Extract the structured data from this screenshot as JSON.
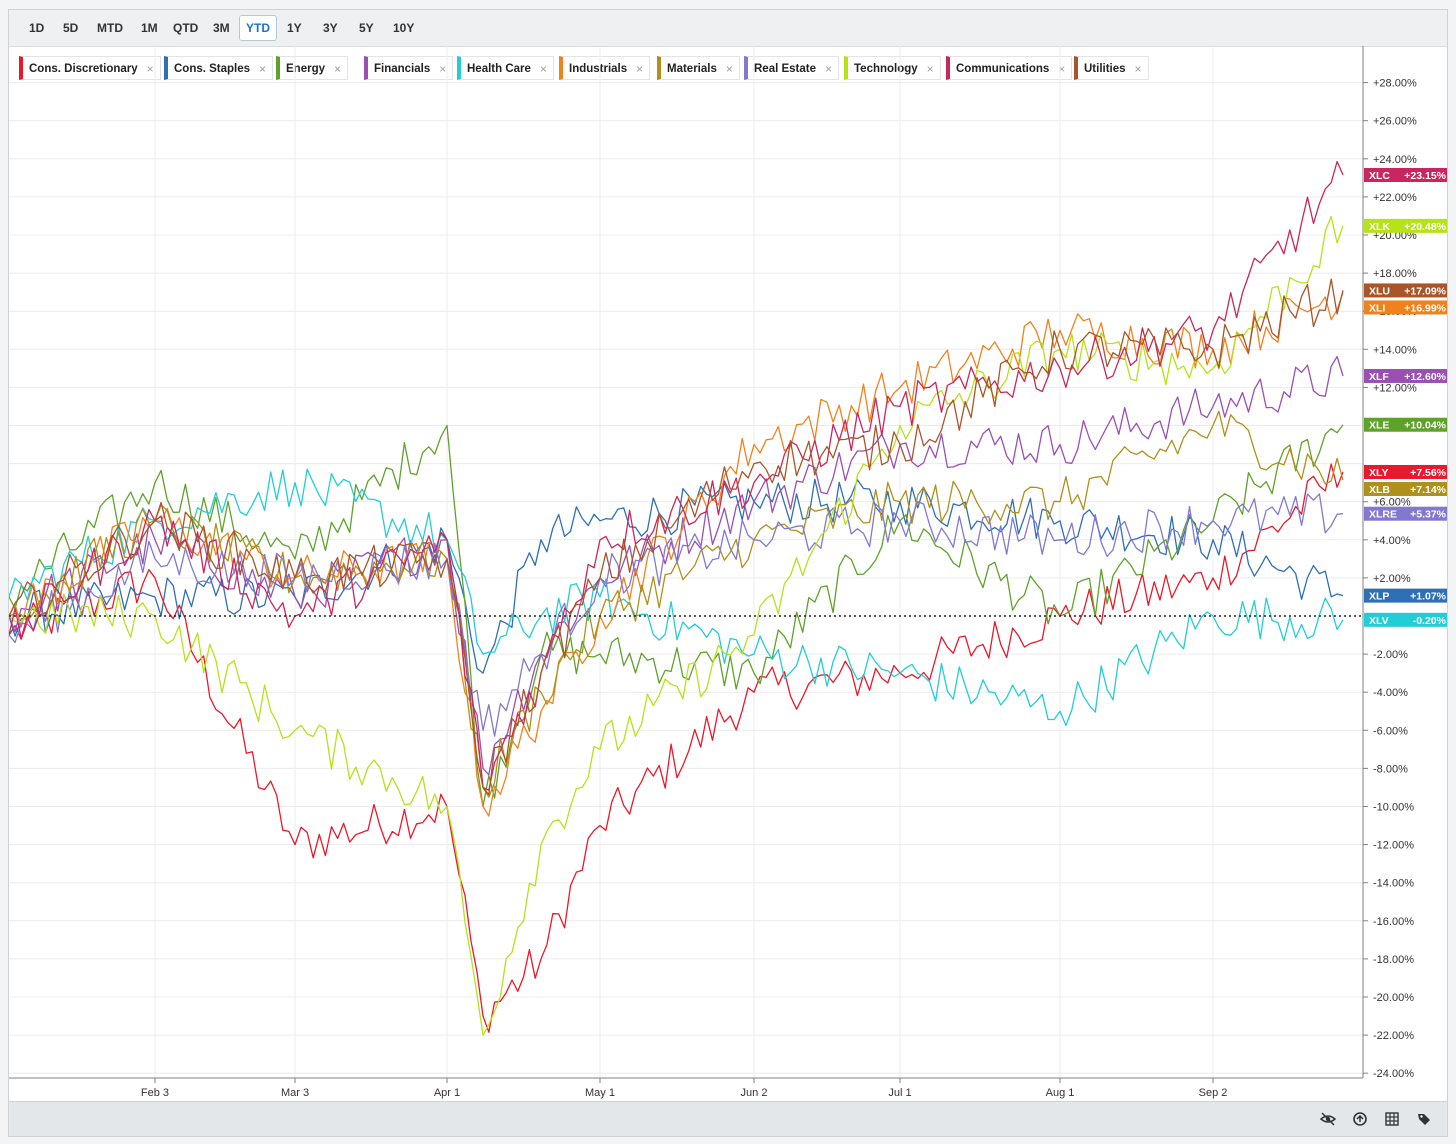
{
  "toolbar": {
    "ranges": [
      "1D",
      "5D",
      "MTD",
      "1M",
      "QTD",
      "3M",
      "YTD",
      "1Y",
      "3Y",
      "5Y",
      "10Y"
    ],
    "active": "YTD"
  },
  "legend": [
    {
      "name": "Cons. Discretionary",
      "color": "#e8192c"
    },
    {
      "name": "Cons. Staples",
      "color": "#2e6fb5"
    },
    {
      "name": "Energy",
      "color": "#5fa22a"
    },
    {
      "name": "Financials",
      "color": "#9a4fb2"
    },
    {
      "name": "Health Care",
      "color": "#22cdd6"
    },
    {
      "name": "Industrials",
      "color": "#f0821e"
    },
    {
      "name": "Materials",
      "color": "#b0901a"
    },
    {
      "name": "Real Estate",
      "color": "#8378d0"
    },
    {
      "name": "Technology",
      "color": "#b6e21a"
    },
    {
      "name": "Communications",
      "color": "#c8265e"
    },
    {
      "name": "Utilities",
      "color": "#a8552a"
    }
  ],
  "footer": {
    "icons": [
      "hide-series-icon",
      "compare-icon",
      "grid-icon",
      "tags-icon"
    ]
  },
  "chart_data": {
    "type": "line",
    "x_labels": [
      "Feb 3",
      "Mar 3",
      "Apr 1",
      "May 1",
      "Jun 2",
      "Jul 1",
      "Aug 1",
      "Sep 2"
    ],
    "ylim": [
      -24,
      29
    ],
    "y_ticks": [
      "+28.00%",
      "+26.00%",
      "+24.00%",
      "+22.00%",
      "+20.00%",
      "+18.00%",
      "+16.00%",
      "+14.00%",
      "+12.00%",
      "+6.00%",
      "+4.00%",
      "+2.00%",
      "-2.00%",
      "-4.00%",
      "-6.00%",
      "-8.00%",
      "-10.00%",
      "-12.00%",
      "-14.00%",
      "-16.00%",
      "-18.00%",
      "-20.00%",
      "-22.00%",
      "-24.00%"
    ],
    "y_tick_values": [
      28,
      26,
      24,
      22,
      20,
      18,
      16,
      14,
      12,
      6,
      4,
      2,
      -2,
      -4,
      -6,
      -8,
      -10,
      -12,
      -14,
      -16,
      -18,
      -20,
      -22,
      -24
    ],
    "grid": true,
    "baseline": 0,
    "x_positions": [
      "Jan 2",
      "Feb 3",
      "Mar 3",
      "Apr 1",
      "Apr 8",
      "Apr 21",
      "May 1",
      "Jun 2",
      "Jul 1",
      "Aug 1",
      "Sep 2",
      "Sep 26"
    ],
    "series": [
      {
        "name": "Cons. Discretionary",
        "ticker": "XLY",
        "color": "#e8192c",
        "final": 7.56,
        "label": "+7.56%",
        "values": [
          -1,
          2,
          -12,
          -10,
          -21,
          -18,
          -11,
          -4,
          -3,
          0,
          2,
          7.56
        ]
      },
      {
        "name": "Cons. Staples",
        "ticker": "XLP",
        "color": "#2e6fb5",
        "final": 1.07,
        "label": "+1.07%",
        "values": [
          0,
          1,
          1,
          4,
          -3,
          4,
          5,
          6,
          6,
          5,
          4,
          1.07
        ]
      },
      {
        "name": "Energy",
        "ticker": "XLE",
        "color": "#5fa22a",
        "final": 10.04,
        "label": "+10.04%",
        "values": [
          1,
          7,
          3,
          10,
          -10,
          -2,
          -2,
          -3,
          5,
          0,
          5,
          10.04
        ]
      },
      {
        "name": "Financials",
        "ticker": "XLF",
        "color": "#9a4fb2",
        "final": 12.6,
        "label": "+12.60%",
        "values": [
          0,
          4,
          1,
          4,
          -8,
          -2,
          2,
          6,
          9,
          9,
          11,
          12.6
        ]
      },
      {
        "name": "Health Care",
        "ticker": "XLV",
        "color": "#22cdd6",
        "final": -0.2,
        "label": "-0.20%",
        "values": [
          1,
          5,
          7,
          4,
          -2,
          0,
          1,
          -2,
          -3,
          -5,
          0,
          -0.2
        ]
      },
      {
        "name": "Industrials",
        "ticker": "XLI",
        "color": "#f0821e",
        "final": 16.99,
        "label": "+16.99%",
        "values": [
          0,
          5,
          2,
          3,
          -10,
          -5,
          0,
          9,
          12,
          15,
          14,
          16.99
        ]
      },
      {
        "name": "Materials",
        "ticker": "XLB",
        "color": "#b0901a",
        "final": 7.14,
        "label": "+7.14%",
        "values": [
          0,
          5,
          2,
          3,
          -9,
          -4,
          0,
          4,
          6,
          6,
          10,
          7.14
        ]
      },
      {
        "name": "Real Estate",
        "ticker": "XLRE",
        "color": "#8378d0",
        "final": 5.37,
        "label": "+5.37%",
        "values": [
          -1,
          3,
          2,
          3,
          -6,
          -2,
          2,
          4,
          5,
          4,
          5,
          5.37
        ]
      },
      {
        "name": "Technology",
        "ticker": "XLK",
        "color": "#b6e21a",
        "final": 20.48,
        "label": "+20.48%",
        "values": [
          0,
          0,
          -6,
          -10,
          -22,
          -12,
          -7,
          -1,
          10,
          14,
          13,
          20.48
        ]
      },
      {
        "name": "Communications",
        "ticker": "XLC",
        "color": "#c8265e",
        "final": 23.15,
        "label": "+23.15%",
        "values": [
          -1,
          5,
          0,
          4,
          -9,
          -3,
          4,
          7,
          11,
          13,
          15,
          23.15
        ]
      },
      {
        "name": "Utilities",
        "ticker": "XLU",
        "color": "#a8552a",
        "final": 17.09,
        "label": "+17.09%",
        "values": [
          0,
          5,
          2,
          3,
          -9,
          -3,
          2,
          8,
          9,
          14,
          14,
          17.09
        ]
      }
    ]
  }
}
